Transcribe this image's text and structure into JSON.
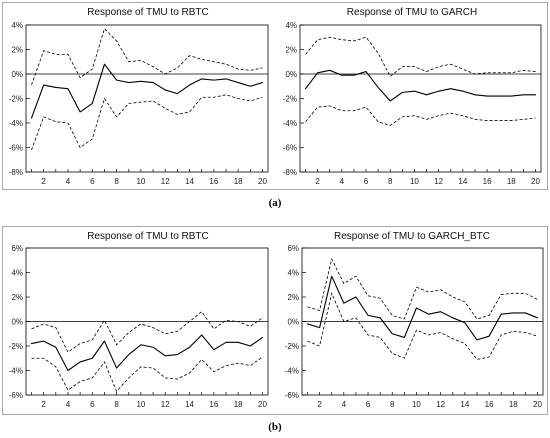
{
  "figure_labels": {
    "a": "(a)",
    "b": "(b)"
  },
  "chart_data": [
    {
      "type": "line",
      "title": "Response of TMU to RBTC",
      "x": [
        1,
        2,
        3,
        4,
        5,
        6,
        7,
        8,
        9,
        10,
        11,
        12,
        13,
        14,
        15,
        16,
        17,
        18,
        19,
        20
      ],
      "xlim": [
        1,
        20
      ],
      "xticks": [
        2,
        4,
        6,
        8,
        10,
        12,
        14,
        16,
        18,
        20
      ],
      "ylim": [
        -8,
        4
      ],
      "yticks": [
        4,
        2,
        0,
        -2,
        -4,
        -6,
        -8
      ],
      "ytick_labels": [
        "4%",
        "2%",
        "0%",
        "-2%",
        "-4%",
        "-6%",
        "-8%"
      ],
      "reference_line": 0,
      "grid": false,
      "series": [
        {
          "dashed": false,
          "color": "#000000",
          "values": [
            -3.6,
            -0.9,
            -1.1,
            -1.2,
            -3.1,
            -2.4,
            0.8,
            -0.5,
            -0.7,
            -0.6,
            -0.7,
            -1.3,
            -1.6,
            -0.9,
            -0.4,
            -0.5,
            -0.4,
            -0.7,
            -1.0,
            -0.7
          ]
        },
        {
          "dashed": true,
          "color": "#000000",
          "values": [
            -0.9,
            1.9,
            1.6,
            1.6,
            -0.3,
            0.4,
            3.7,
            2.7,
            1.0,
            1.1,
            0.6,
            0.0,
            0.5,
            1.5,
            1.2,
            1.0,
            0.8,
            0.4,
            0.3,
            0.5
          ]
        },
        {
          "dashed": true,
          "color": "#000000",
          "values": [
            -6.2,
            -3.5,
            -3.9,
            -4.0,
            -6.0,
            -5.3,
            -2.0,
            -3.5,
            -2.4,
            -2.3,
            -2.2,
            -2.8,
            -3.3,
            -3.1,
            -1.9,
            -1.9,
            -1.7,
            -2.0,
            -2.2,
            -1.9
          ]
        }
      ]
    },
    {
      "type": "line",
      "title": "Response of TMU to GARCH",
      "x": [
        1,
        2,
        3,
        4,
        5,
        6,
        7,
        8,
        9,
        10,
        11,
        12,
        13,
        14,
        15,
        16,
        17,
        18,
        19,
        20
      ],
      "xlim": [
        1,
        20
      ],
      "xticks": [
        2,
        4,
        6,
        8,
        10,
        12,
        14,
        16,
        18,
        20
      ],
      "ylim": [
        -8,
        4
      ],
      "yticks": [
        4,
        2,
        0,
        -2,
        -4,
        -6,
        -8
      ],
      "ytick_labels": [
        "4%",
        "2%",
        "0%",
        "-2%",
        "-4%",
        "-6%",
        "-8%"
      ],
      "reference_line": 0,
      "grid": false,
      "series": [
        {
          "dashed": false,
          "color": "#000000",
          "values": [
            -1.2,
            0.1,
            0.3,
            -0.1,
            -0.1,
            0.2,
            -1.1,
            -2.2,
            -1.5,
            -1.4,
            -1.7,
            -1.4,
            -1.2,
            -1.4,
            -1.7,
            -1.8,
            -1.8,
            -1.8,
            -1.7,
            -1.7
          ]
        },
        {
          "dashed": true,
          "color": "#000000",
          "values": [
            1.6,
            2.8,
            3.0,
            2.8,
            2.7,
            3.0,
            1.7,
            -0.2,
            0.6,
            0.6,
            0.2,
            0.6,
            0.8,
            0.4,
            0.0,
            0.1,
            0.1,
            0.1,
            0.3,
            0.2
          ]
        },
        {
          "dashed": true,
          "color": "#000000",
          "values": [
            -3.9,
            -2.7,
            -2.6,
            -3.0,
            -3.0,
            -2.7,
            -3.9,
            -4.2,
            -3.5,
            -3.4,
            -3.7,
            -3.4,
            -3.2,
            -3.4,
            -3.7,
            -3.8,
            -3.8,
            -3.8,
            -3.7,
            -3.6
          ]
        }
      ]
    },
    {
      "type": "line",
      "title": "Response of TMU to RBTC",
      "x": [
        1,
        2,
        3,
        4,
        5,
        6,
        7,
        8,
        9,
        10,
        11,
        12,
        13,
        14,
        15,
        16,
        17,
        18,
        19,
        20
      ],
      "xlim": [
        1,
        20
      ],
      "xticks": [
        2,
        4,
        6,
        8,
        10,
        12,
        14,
        16,
        18,
        20
      ],
      "ylim": [
        -6,
        6
      ],
      "yticks": [
        6,
        4,
        2,
        0,
        -2,
        -4,
        -6
      ],
      "ytick_labels": [
        "6%",
        "4%",
        "2%",
        "0%",
        "-2%",
        "-4%",
        "-6%"
      ],
      "reference_line": 0,
      "grid": false,
      "series": [
        {
          "dashed": false,
          "color": "#000000",
          "values": [
            -1.8,
            -1.6,
            -2.1,
            -4.0,
            -3.3,
            -3.0,
            -1.6,
            -3.8,
            -2.7,
            -1.9,
            -2.1,
            -2.8,
            -2.7,
            -2.1,
            -1.1,
            -2.3,
            -1.7,
            -1.7,
            -2.0,
            -1.3
          ]
        },
        {
          "dashed": true,
          "color": "#000000",
          "values": [
            -0.6,
            -0.2,
            -0.5,
            -2.5,
            -1.8,
            -1.5,
            0.1,
            -1.9,
            -0.9,
            -0.2,
            -0.5,
            -1.0,
            -0.8,
            0.0,
            0.8,
            -0.6,
            0.1,
            0.0,
            -0.4,
            0.3
          ]
        },
        {
          "dashed": true,
          "color": "#000000",
          "values": [
            -3.0,
            -3.0,
            -3.7,
            -5.6,
            -4.9,
            -4.6,
            -3.3,
            -5.7,
            -4.6,
            -3.7,
            -3.8,
            -4.6,
            -4.7,
            -4.2,
            -3.1,
            -4.1,
            -3.6,
            -3.4,
            -3.6,
            -2.9
          ]
        }
      ]
    },
    {
      "type": "line",
      "title": "Response of TMU to GARCH_BTC",
      "x": [
        1,
        2,
        3,
        4,
        5,
        6,
        7,
        8,
        9,
        10,
        11,
        12,
        13,
        14,
        15,
        16,
        17,
        18,
        19,
        20
      ],
      "xlim": [
        1,
        20
      ],
      "xticks": [
        2,
        4,
        6,
        8,
        10,
        12,
        14,
        16,
        18,
        20
      ],
      "ylim": [
        -6,
        6
      ],
      "yticks": [
        6,
        4,
        2,
        0,
        -2,
        -4,
        -6
      ],
      "ytick_labels": [
        "6%",
        "4%",
        "2%",
        "0%",
        "-2%",
        "-4%",
        "-6%"
      ],
      "reference_line": 0,
      "grid": false,
      "series": [
        {
          "dashed": false,
          "color": "#000000",
          "values": [
            -0.2,
            -0.5,
            3.7,
            1.5,
            2.0,
            0.5,
            0.3,
            -1.0,
            -1.3,
            1.1,
            0.6,
            0.8,
            0.3,
            -0.1,
            -1.5,
            -1.2,
            0.6,
            0.7,
            0.7,
            0.3
          ]
        },
        {
          "dashed": true,
          "color": "#000000",
          "values": [
            1.2,
            0.9,
            5.1,
            3.1,
            3.7,
            2.1,
            1.9,
            0.5,
            0.2,
            2.8,
            2.4,
            2.6,
            2.0,
            1.6,
            0.2,
            0.5,
            2.2,
            2.3,
            2.3,
            1.8
          ]
        },
        {
          "dashed": true,
          "color": "#000000",
          "values": [
            -1.6,
            -2.0,
            2.3,
            0.0,
            0.3,
            -1.1,
            -1.3,
            -2.6,
            -3.0,
            -0.7,
            -1.1,
            -0.9,
            -1.4,
            -1.8,
            -3.1,
            -2.9,
            -1.1,
            -0.8,
            -0.9,
            -1.2
          ]
        }
      ]
    }
  ]
}
